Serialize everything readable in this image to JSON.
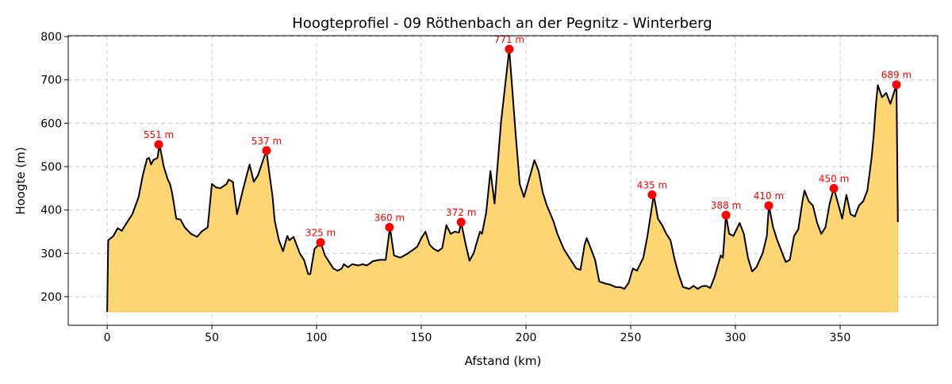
{
  "chart_data": {
    "type": "area",
    "title": "Hoogteprofiel - 09 Röthenbach an der Pegnitz - Winterberg",
    "xlabel": "Afstand (km)",
    "ylabel": "Hoogte (m)",
    "xlim": [
      -18.6,
      396.6
    ],
    "ylim": [
      134,
      802
    ],
    "xticks": [
      0,
      50,
      100,
      150,
      200,
      250,
      300,
      350
    ],
    "yticks": [
      200,
      300,
      400,
      500,
      600,
      700,
      800
    ],
    "grid": true,
    "fill_color": "#fdd36b",
    "line_color": "#000000",
    "marker_color": "#ff0000",
    "baseline": 165,
    "profile": [
      [
        0,
        165
      ],
      [
        0.5,
        330
      ],
      [
        3,
        340
      ],
      [
        5,
        358
      ],
      [
        7,
        352
      ],
      [
        9,
        368
      ],
      [
        12,
        390
      ],
      [
        15,
        430
      ],
      [
        17,
        480
      ],
      [
        19,
        518
      ],
      [
        20,
        520
      ],
      [
        21,
        505
      ],
      [
        22,
        515
      ],
      [
        24,
        520
      ],
      [
        25,
        551
      ],
      [
        27,
        500
      ],
      [
        29,
        470
      ],
      [
        30,
        460
      ],
      [
        31,
        440
      ],
      [
        33,
        380
      ],
      [
        35,
        378
      ],
      [
        37,
        360
      ],
      [
        40,
        345
      ],
      [
        42,
        340
      ],
      [
        43,
        338
      ],
      [
        45,
        350
      ],
      [
        48,
        360
      ],
      [
        50,
        460
      ],
      [
        52,
        452
      ],
      [
        54,
        450
      ],
      [
        57,
        460
      ],
      [
        58,
        470
      ],
      [
        60,
        465
      ],
      [
        62,
        390
      ],
      [
        65,
        450
      ],
      [
        68,
        505
      ],
      [
        70,
        465
      ],
      [
        72,
        480
      ],
      [
        76,
        537
      ],
      [
        79,
        430
      ],
      [
        80,
        375
      ],
      [
        82,
        330
      ],
      [
        84,
        305
      ],
      [
        86,
        340
      ],
      [
        87,
        330
      ],
      [
        89,
        338
      ],
      [
        92,
        300
      ],
      [
        94,
        285
      ],
      [
        96,
        252
      ],
      [
        97,
        252
      ],
      [
        99,
        310
      ],
      [
        100,
        315
      ],
      [
        102,
        325
      ],
      [
        104,
        295
      ],
      [
        106,
        280
      ],
      [
        108,
        265
      ],
      [
        110,
        260
      ],
      [
        112,
        265
      ],
      [
        113,
        275
      ],
      [
        115,
        268
      ],
      [
        117,
        275
      ],
      [
        120,
        272
      ],
      [
        122,
        275
      ],
      [
        124,
        272
      ],
      [
        127,
        282
      ],
      [
        130,
        285
      ],
      [
        133,
        285
      ],
      [
        135,
        360
      ],
      [
        137,
        295
      ],
      [
        140,
        290
      ],
      [
        143,
        298
      ],
      [
        146,
        308
      ],
      [
        148,
        315
      ],
      [
        150,
        335
      ],
      [
        152,
        350
      ],
      [
        154,
        320
      ],
      [
        156,
        310
      ],
      [
        158,
        305
      ],
      [
        160,
        312
      ],
      [
        162,
        365
      ],
      [
        164,
        345
      ],
      [
        166,
        350
      ],
      [
        168,
        348
      ],
      [
        169,
        372
      ],
      [
        171,
        325
      ],
      [
        173,
        283
      ],
      [
        175,
        300
      ],
      [
        178,
        350
      ],
      [
        179,
        345
      ],
      [
        181,
        395
      ],
      [
        183,
        490
      ],
      [
        185,
        415
      ],
      [
        188,
        600
      ],
      [
        192,
        771
      ],
      [
        195,
        580
      ],
      [
        197,
        460
      ],
      [
        199,
        430
      ],
      [
        202,
        480
      ],
      [
        204,
        515
      ],
      [
        206,
        490
      ],
      [
        208,
        440
      ],
      [
        210,
        410
      ],
      [
        213,
        375
      ],
      [
        215,
        345
      ],
      [
        218,
        310
      ],
      [
        220,
        295
      ],
      [
        222,
        280
      ],
      [
        224,
        265
      ],
      [
        226,
        262
      ],
      [
        228,
        320
      ],
      [
        229,
        335
      ],
      [
        231,
        310
      ],
      [
        233,
        285
      ],
      [
        235,
        235
      ],
      [
        238,
        230
      ],
      [
        240,
        228
      ],
      [
        243,
        222
      ],
      [
        245,
        222
      ],
      [
        247,
        218
      ],
      [
        249,
        232
      ],
      [
        251,
        265
      ],
      [
        253,
        260
      ],
      [
        256,
        290
      ],
      [
        258,
        340
      ],
      [
        261,
        435
      ],
      [
        263,
        380
      ],
      [
        265,
        365
      ],
      [
        267,
        345
      ],
      [
        269,
        330
      ],
      [
        271,
        285
      ],
      [
        273,
        250
      ],
      [
        275,
        222
      ],
      [
        278,
        218
      ],
      [
        280,
        225
      ],
      [
        282,
        218
      ],
      [
        284,
        224
      ],
      [
        286,
        225
      ],
      [
        288,
        220
      ],
      [
        290,
        245
      ],
      [
        293,
        295
      ],
      [
        294,
        290
      ],
      [
        295.5,
        388
      ],
      [
        297,
        345
      ],
      [
        299,
        340
      ],
      [
        302,
        370
      ],
      [
        304,
        345
      ],
      [
        306,
        290
      ],
      [
        308,
        258
      ],
      [
        310,
        268
      ],
      [
        313,
        300
      ],
      [
        315,
        340
      ],
      [
        316,
        410
      ],
      [
        318,
        360
      ],
      [
        320,
        330
      ],
      [
        322,
        305
      ],
      [
        324,
        280
      ],
      [
        326,
        285
      ],
      [
        328,
        340
      ],
      [
        330,
        355
      ],
      [
        332,
        420
      ],
      [
        333,
        445
      ],
      [
        335,
        420
      ],
      [
        337,
        410
      ],
      [
        339,
        370
      ],
      [
        341,
        345
      ],
      [
        343,
        360
      ],
      [
        345,
        415
      ],
      [
        347,
        450
      ],
      [
        349,
        415
      ],
      [
        351,
        380
      ],
      [
        353,
        435
      ],
      [
        355,
        390
      ],
      [
        357,
        385
      ],
      [
        359,
        410
      ],
      [
        361,
        420
      ],
      [
        363,
        445
      ],
      [
        365,
        520
      ],
      [
        366,
        570
      ],
      [
        367,
        640
      ],
      [
        368,
        688
      ],
      [
        370,
        660
      ],
      [
        372,
        670
      ],
      [
        374,
        645
      ],
      [
        376,
        675
      ],
      [
        376.9,
        689
      ],
      [
        377.6,
        372
      ]
    ],
    "peaks": [
      {
        "x": 24.6,
        "y": 551,
        "label": "551 m"
      },
      {
        "x": 76.1,
        "y": 537,
        "label": "537 m"
      },
      {
        "x": 101.9,
        "y": 325,
        "label": "325 m"
      },
      {
        "x": 134.8,
        "y": 360,
        "label": "360 m"
      },
      {
        "x": 169,
        "y": 372,
        "label": "372 m"
      },
      {
        "x": 192,
        "y": 771,
        "label": "771 m"
      },
      {
        "x": 260.2,
        "y": 435,
        "label": "435 m"
      },
      {
        "x": 295.5,
        "y": 388,
        "label": "388 m"
      },
      {
        "x": 315.9,
        "y": 410,
        "label": "410 m"
      },
      {
        "x": 347,
        "y": 450,
        "label": "450 m"
      },
      {
        "x": 376.9,
        "y": 689,
        "label": "689 m"
      }
    ]
  }
}
